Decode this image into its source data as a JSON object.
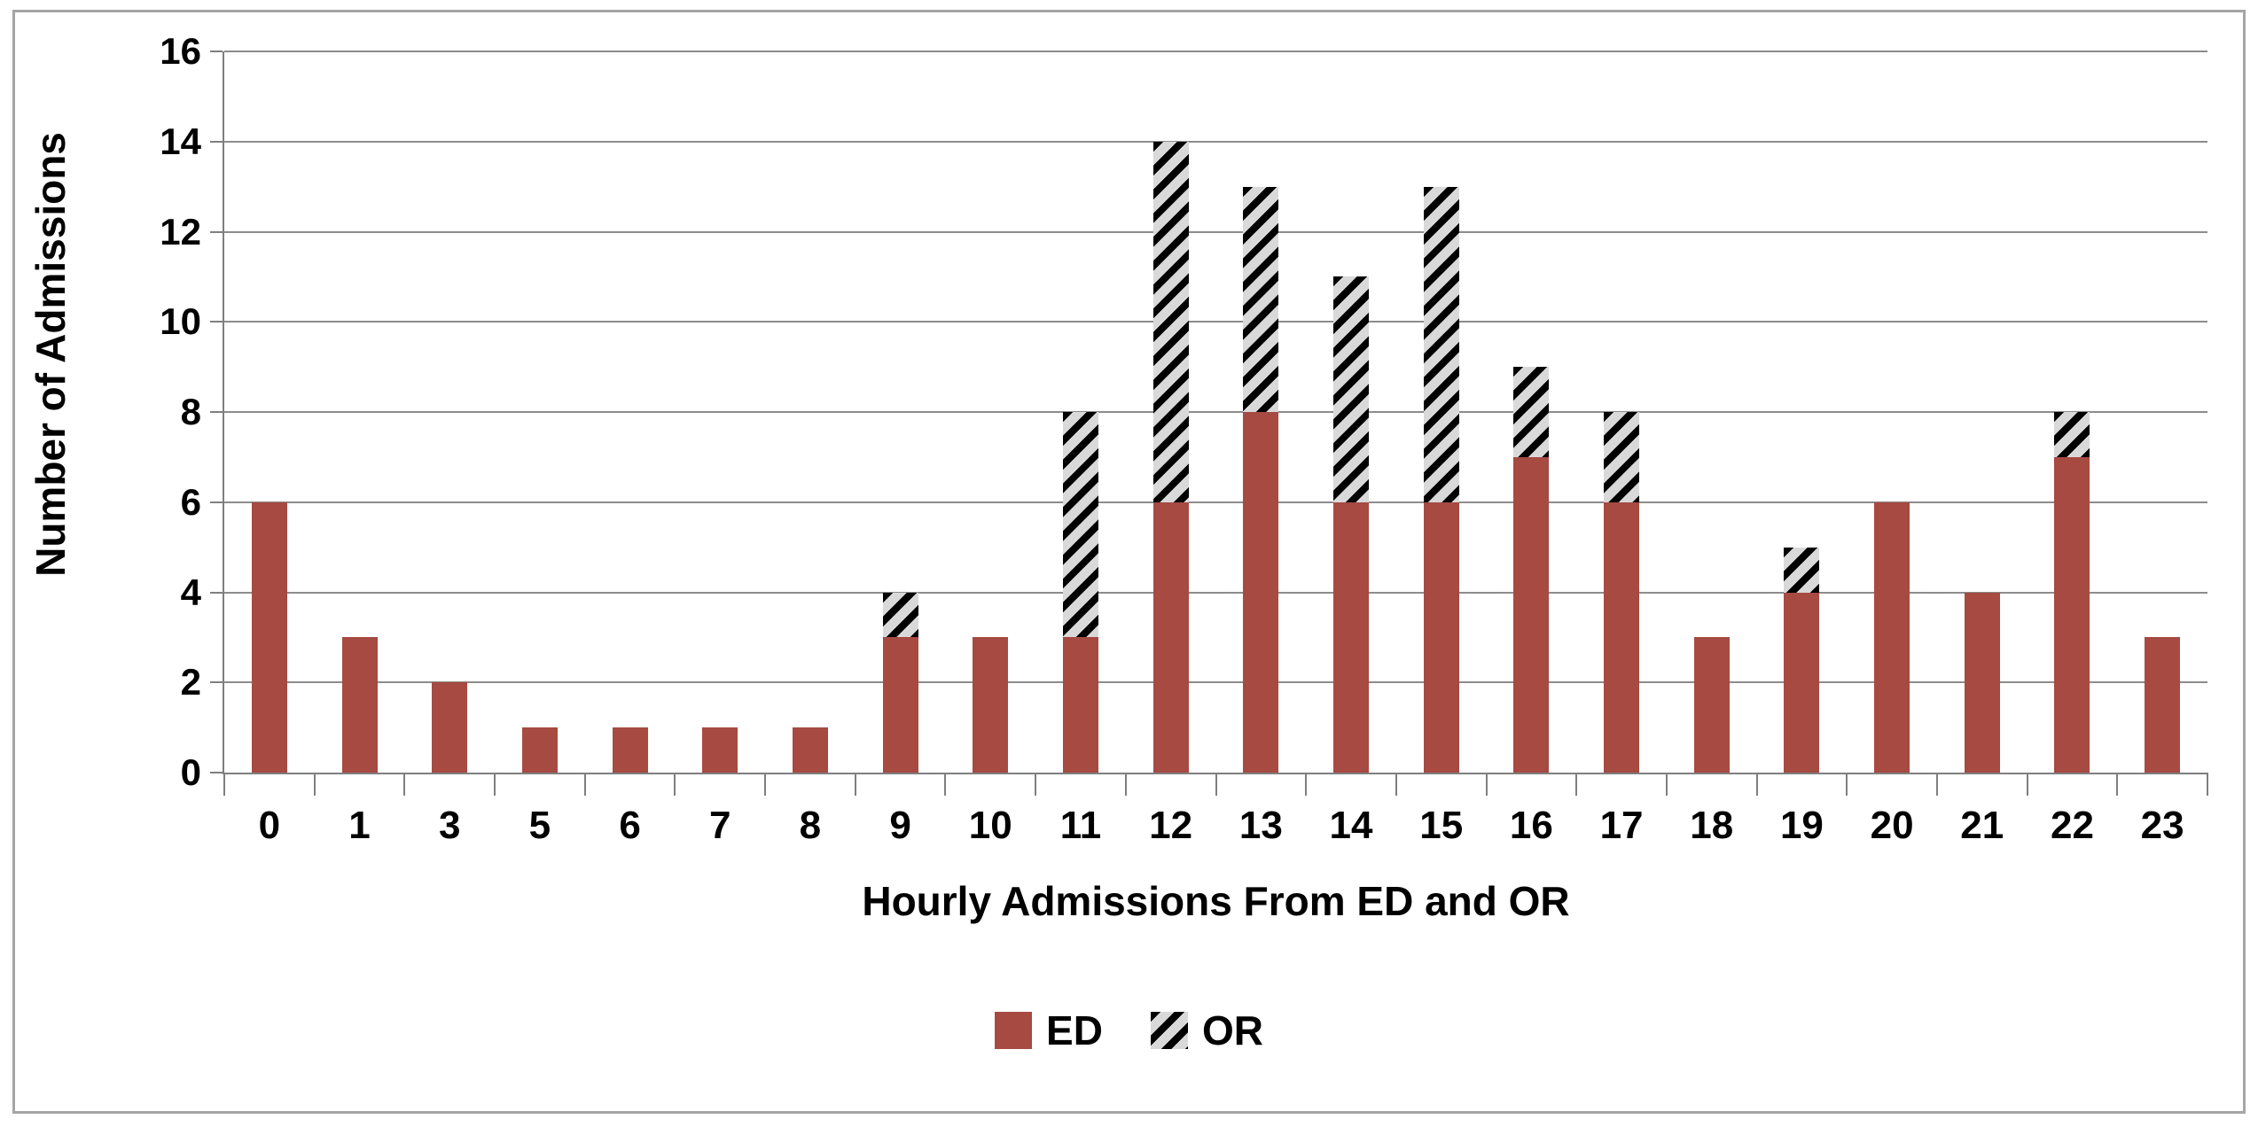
{
  "chart_data": {
    "type": "bar",
    "subtype": "stacked-vertical",
    "title": "",
    "xlabel": "Hourly Admissions From ED and OR",
    "ylabel": "Number of Admissions",
    "categories": [
      "0",
      "1",
      "3",
      "5",
      "6",
      "7",
      "8",
      "9",
      "10",
      "11",
      "12",
      "13",
      "14",
      "15",
      "16",
      "17",
      "18",
      "19",
      "20",
      "21",
      "22",
      "23"
    ],
    "series": [
      {
        "name": "ED",
        "style": "solid",
        "color": "#A64A42",
        "values": [
          6,
          3,
          2,
          1,
          1,
          1,
          1,
          3,
          3,
          3,
          6,
          8,
          6,
          6,
          7,
          6,
          3,
          4,
          6,
          4,
          7,
          3
        ]
      },
      {
        "name": "OR",
        "style": "hatched",
        "hatch_fg": "#000000",
        "hatch_bg": "#D9D9D9",
        "values": [
          0,
          0,
          0,
          0,
          0,
          0,
          0,
          1,
          0,
          5,
          8,
          5,
          5,
          7,
          2,
          2,
          0,
          1,
          0,
          0,
          1,
          0
        ]
      }
    ],
    "stacked_totals": [
      6,
      3,
      2,
      1,
      1,
      1,
      1,
      4,
      3,
      8,
      14,
      13,
      11,
      13,
      9,
      8,
      3,
      5,
      6,
      4,
      8,
      3
    ],
    "ylim": [
      0,
      16
    ],
    "yticks": [
      0,
      2,
      4,
      6,
      8,
      10,
      12,
      14,
      16
    ],
    "grid": "horizontal",
    "legend_position": "bottom-center",
    "colors": {
      "gridline": "#8C8C8C",
      "axis": "#7F7F7F",
      "frame_border": "#A6A6A6",
      "text": "#000000",
      "background": "#FFFFFF"
    }
  }
}
